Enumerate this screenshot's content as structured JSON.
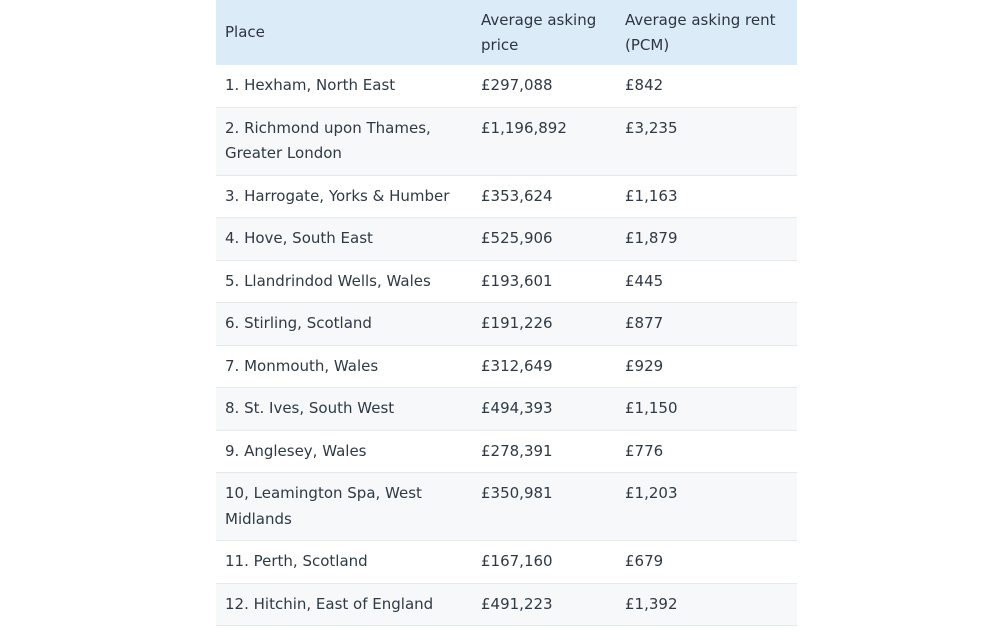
{
  "table": {
    "headers": {
      "place": "Place",
      "price": "Average asking price",
      "rent": "Average asking rent (PCM)"
    },
    "rows": [
      {
        "place": "1. Hexham, North East",
        "price": "£297,088",
        "rent": "£842"
      },
      {
        "place": "2. Richmond upon Thames, Greater London",
        "price": "£1,196,892",
        "rent": "£3,235"
      },
      {
        "place": "3. Harrogate, Yorks & Humber",
        "price": "£353,624",
        "rent": "£1,163"
      },
      {
        "place": "4. Hove, South East",
        "price": "£525,906",
        "rent": "£1,879"
      },
      {
        "place": "5. Llandrindod Wells, Wales",
        "price": "£193,601",
        "rent": "£445"
      },
      {
        "place": "6. Stirling, Scotland",
        "price": "£191,226",
        "rent": "£877"
      },
      {
        "place": "7. Monmouth, Wales",
        "price": "£312,649",
        "rent": "£929"
      },
      {
        "place": "8. St. Ives, South West",
        "price": "£494,393",
        "rent": "£1,150"
      },
      {
        "place": "9. Anglesey, Wales",
        "price": "£278,391",
        "rent": "£776"
      },
      {
        "place": "10, Leamington Spa, West Midlands",
        "price": "£350,981",
        "rent": "£1,203"
      },
      {
        "place": "11. Perth, Scotland",
        "price": "£167,160",
        "rent": "£679"
      },
      {
        "place": "12. Hitchin, East of England",
        "price": "£491,223",
        "rent": "£1,392"
      }
    ]
  }
}
